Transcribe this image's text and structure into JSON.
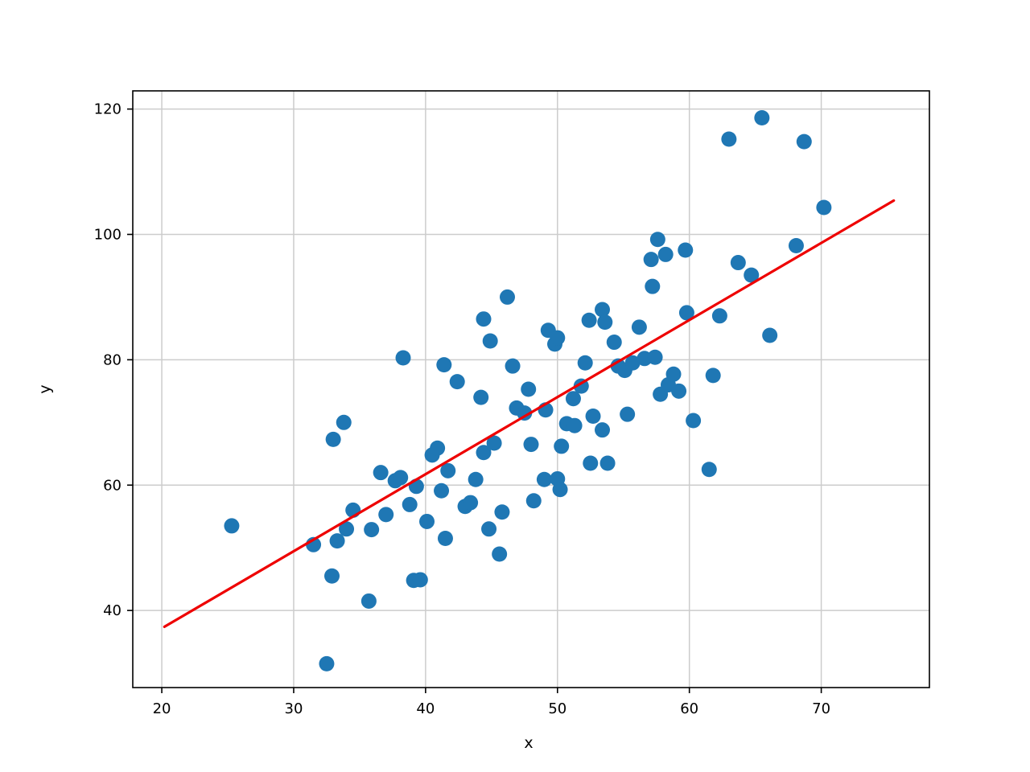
{
  "chart_data": {
    "type": "scatter",
    "title": "",
    "xlabel": "x",
    "ylabel": "y",
    "xlim": [
      17.8,
      78.2
    ],
    "ylim": [
      27.7,
      122.9
    ],
    "x_ticks": [
      20,
      30,
      40,
      50,
      60,
      70
    ],
    "y_ticks": [
      40,
      60,
      80,
      100,
      120
    ],
    "grid": true,
    "legend": "none",
    "series": [
      {
        "name": "data-points",
        "type": "scatter",
        "color": "#1f77b4",
        "marker_radius": 9.5,
        "points": [
          [
            25.3,
            53.5
          ],
          [
            31.5,
            50.5
          ],
          [
            32.5,
            31.5
          ],
          [
            32.9,
            45.5
          ],
          [
            33.0,
            67.3
          ],
          [
            33.3,
            51.1
          ],
          [
            33.8,
            70.0
          ],
          [
            34.0,
            53.0
          ],
          [
            34.5,
            56.0
          ],
          [
            35.7,
            41.5
          ],
          [
            35.9,
            52.9
          ],
          [
            36.6,
            62.0
          ],
          [
            37.0,
            55.3
          ],
          [
            37.7,
            60.7
          ],
          [
            38.1,
            61.2
          ],
          [
            38.3,
            80.3
          ],
          [
            38.8,
            56.9
          ],
          [
            39.1,
            44.8
          ],
          [
            39.6,
            44.9
          ],
          [
            39.3,
            59.8
          ],
          [
            40.1,
            54.2
          ],
          [
            40.5,
            64.8
          ],
          [
            40.9,
            65.9
          ],
          [
            41.2,
            59.1
          ],
          [
            41.4,
            79.2
          ],
          [
            41.5,
            51.5
          ],
          [
            41.7,
            62.3
          ],
          [
            42.4,
            76.5
          ],
          [
            43.0,
            56.6
          ],
          [
            43.4,
            57.2
          ],
          [
            43.8,
            60.9
          ],
          [
            44.2,
            74.0
          ],
          [
            44.4,
            86.5
          ],
          [
            44.8,
            53.0
          ],
          [
            44.9,
            83.0
          ],
          [
            44.4,
            65.2
          ],
          [
            45.2,
            66.7
          ],
          [
            45.6,
            49.0
          ],
          [
            45.8,
            55.7
          ],
          [
            46.2,
            90.0
          ],
          [
            46.6,
            79.0
          ],
          [
            46.9,
            72.3
          ],
          [
            47.5,
            71.5
          ],
          [
            47.8,
            75.3
          ],
          [
            48.0,
            66.5
          ],
          [
            48.2,
            57.5
          ],
          [
            49.0,
            60.9
          ],
          [
            49.1,
            72.0
          ],
          [
            49.3,
            84.7
          ],
          [
            49.8,
            82.5
          ],
          [
            50.0,
            83.5
          ],
          [
            50.0,
            61.0
          ],
          [
            50.2,
            59.3
          ],
          [
            50.3,
            66.2
          ],
          [
            50.7,
            69.8
          ],
          [
            51.2,
            73.8
          ],
          [
            51.3,
            69.5
          ],
          [
            51.8,
            75.8
          ],
          [
            52.1,
            79.5
          ],
          [
            52.4,
            86.3
          ],
          [
            52.7,
            71.0
          ],
          [
            52.5,
            63.5
          ],
          [
            53.4,
            68.8
          ],
          [
            53.4,
            88.0
          ],
          [
            53.6,
            86.0
          ],
          [
            53.8,
            63.5
          ],
          [
            54.3,
            82.8
          ],
          [
            54.6,
            79.0
          ],
          [
            55.1,
            78.3
          ],
          [
            55.3,
            71.3
          ],
          [
            55.7,
            79.5
          ],
          [
            56.2,
            85.2
          ],
          [
            56.6,
            80.2
          ],
          [
            57.1,
            96.0
          ],
          [
            57.2,
            91.7
          ],
          [
            57.4,
            80.4
          ],
          [
            57.6,
            99.2
          ],
          [
            57.8,
            74.5
          ],
          [
            58.2,
            96.8
          ],
          [
            58.4,
            76.0
          ],
          [
            58.8,
            77.7
          ],
          [
            59.2,
            75.0
          ],
          [
            59.7,
            97.5
          ],
          [
            59.8,
            87.5
          ],
          [
            60.3,
            70.3
          ],
          [
            61.5,
            62.5
          ],
          [
            61.8,
            77.5
          ],
          [
            62.3,
            87.0
          ],
          [
            63.0,
            115.2
          ],
          [
            63.7,
            95.5
          ],
          [
            64.7,
            93.5
          ],
          [
            65.5,
            118.6
          ],
          [
            66.1,
            83.9
          ],
          [
            68.1,
            98.2
          ],
          [
            68.7,
            114.8
          ],
          [
            70.2,
            104.3
          ]
        ]
      },
      {
        "name": "fit-line",
        "type": "line",
        "color": "#ee0000",
        "line_width": 3.2,
        "x": [
          20.2,
          75.5
        ],
        "y": [
          37.4,
          105.4
        ]
      }
    ],
    "style": {
      "grid_color": "#cccccc",
      "spine_color": "#000000",
      "background": "#ffffff"
    }
  }
}
